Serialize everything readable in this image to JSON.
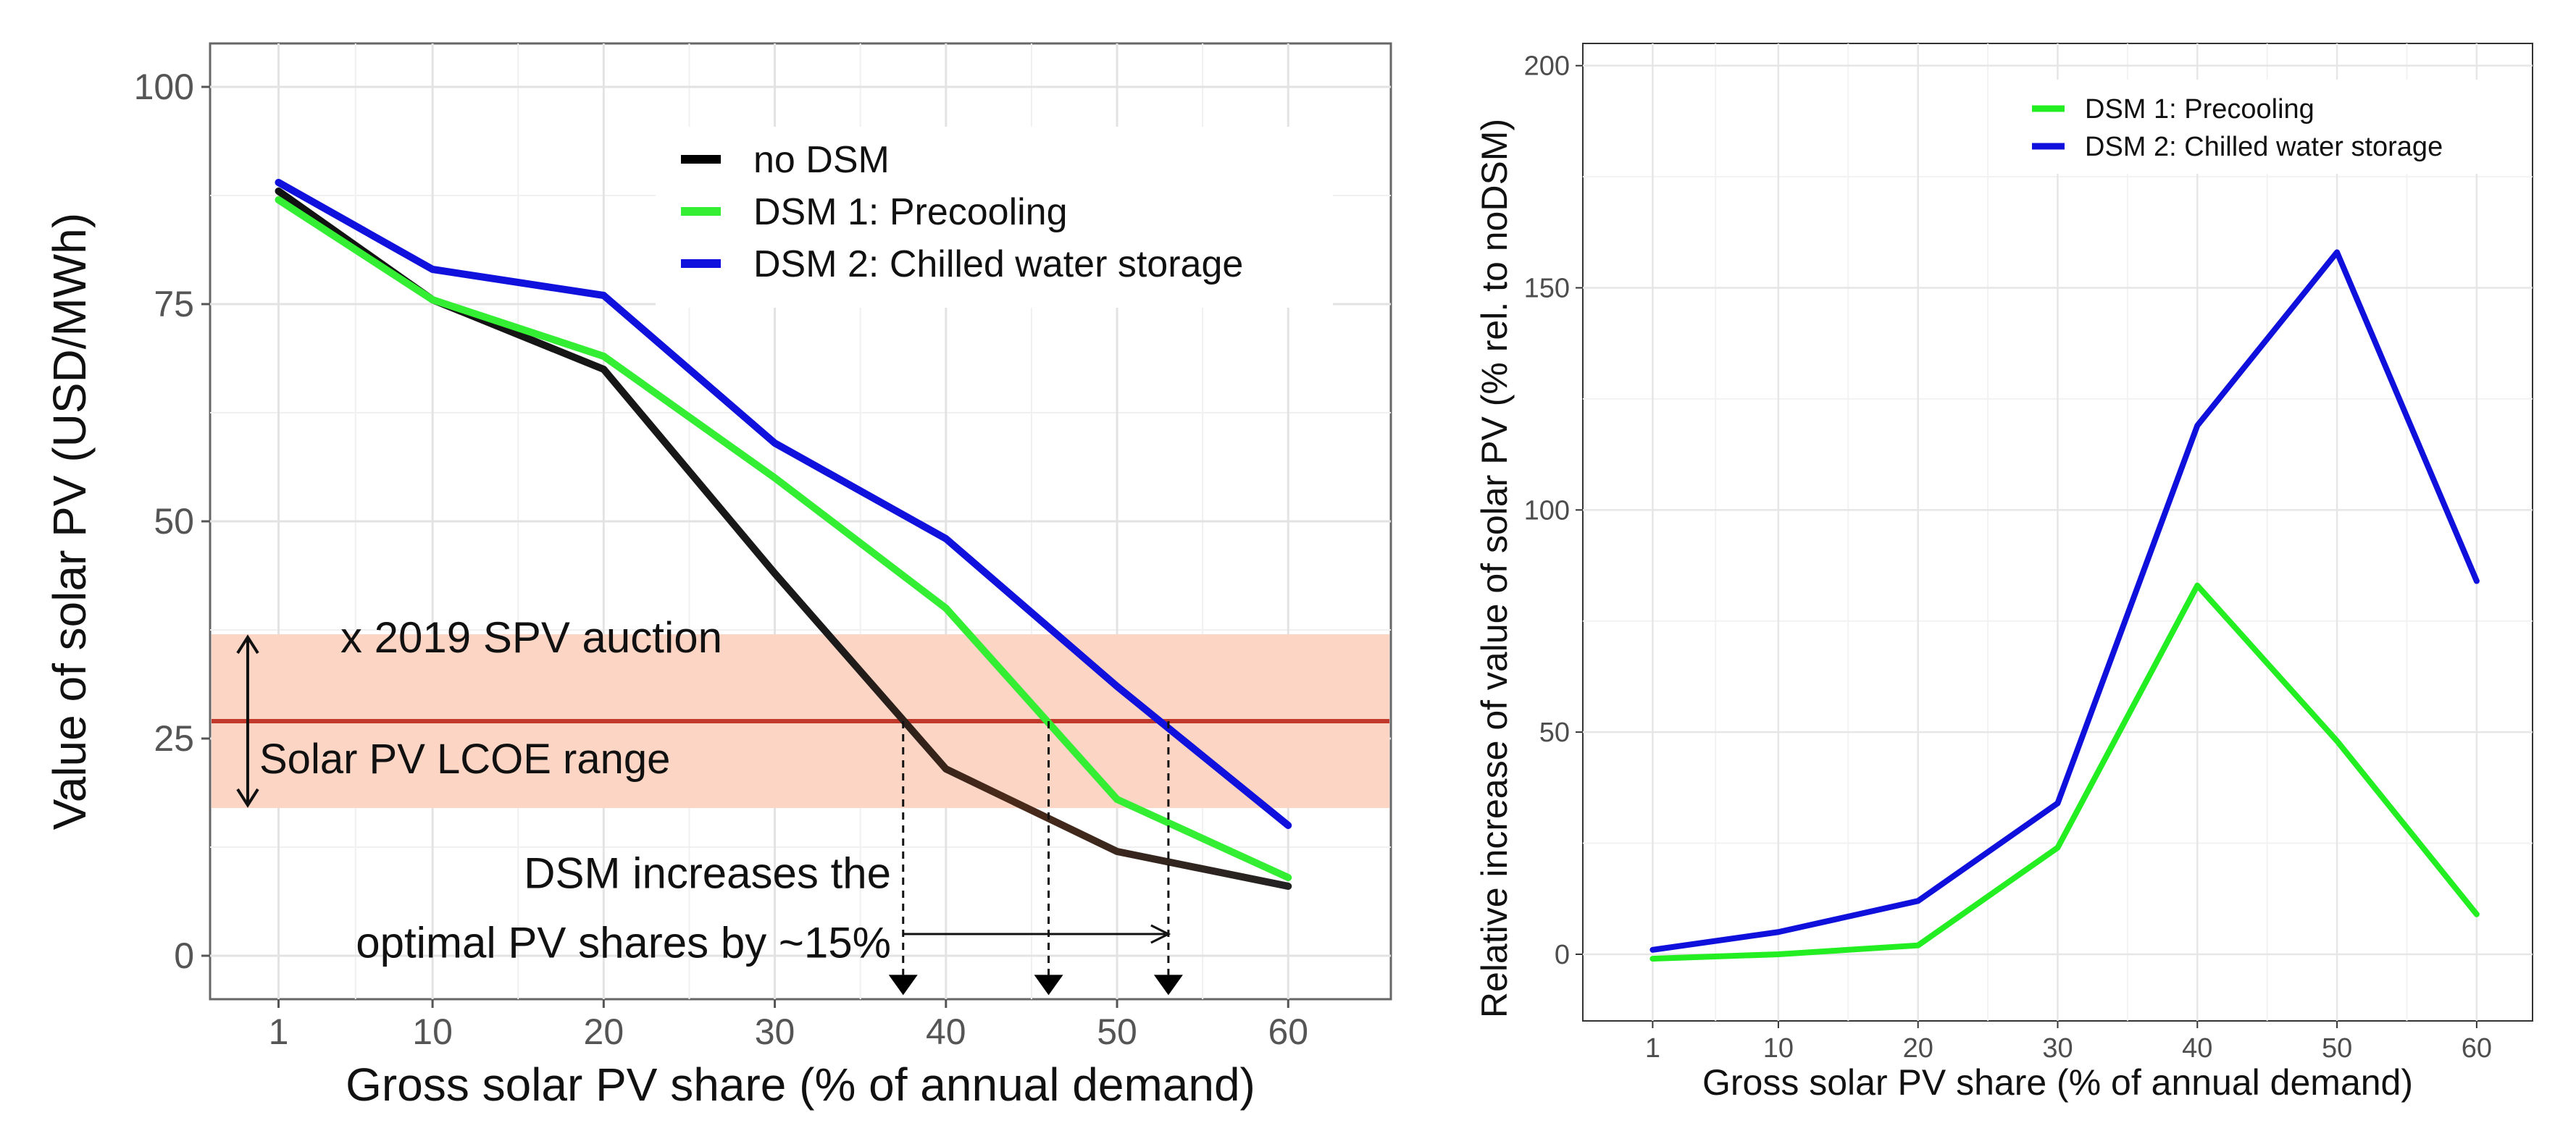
{
  "chart_data": [
    {
      "type": "line",
      "title": "",
      "xlabel": "Gross solar PV share (% of annual demand)",
      "ylabel": "Value of solar PV (USD/MWh)",
      "x": [
        1,
        10,
        20,
        30,
        40,
        50,
        60
      ],
      "x_tick_labels": [
        "1",
        "10",
        "20",
        "30",
        "40",
        "50",
        "60"
      ],
      "y_ticks": [
        0,
        25,
        50,
        75,
        100
      ],
      "xlim": [
        -3,
        66
      ],
      "ylim": [
        -5,
        105
      ],
      "grid": true,
      "legend_position": "top-right",
      "series": [
        {
          "name": "no DSM",
          "color": "#000000",
          "values": [
            88,
            75.5,
            67.5,
            44,
            21.5,
            12,
            8
          ]
        },
        {
          "name": "DSM 1: Precooling",
          "color": "#33ee33",
          "values": [
            87,
            75.5,
            69,
            55,
            40,
            18,
            9
          ]
        },
        {
          "name": "DSM 2: Chilled water storage",
          "color": "#1111dd",
          "values": [
            89,
            79,
            76,
            59,
            48,
            31,
            15
          ]
        }
      ],
      "lcoe_band": {
        "label": "Solar PV LCOE range",
        "low": 17,
        "high": 37,
        "color": "#fdd5c5"
      },
      "auction_line": {
        "label": "x 2019 SPV auction",
        "value": 27,
        "color": "#c0392b"
      },
      "crossings_x": [
        37.5,
        46,
        53
      ],
      "annotation": {
        "line1": "DSM increases the",
        "line2": "optimal PV shares by ~15%"
      }
    },
    {
      "type": "line",
      "title": "",
      "xlabel": "Gross solar PV share (% of annual demand)",
      "ylabel": "Relative increase of value of solar PV (% rel. to noDSM)",
      "x": [
        1,
        10,
        20,
        30,
        40,
        50,
        60
      ],
      "x_tick_labels": [
        "1",
        "10",
        "20",
        "30",
        "40",
        "50",
        "60"
      ],
      "y_ticks": [
        0,
        50,
        100,
        150,
        200
      ],
      "xlim": [
        -4,
        64
      ],
      "ylim": [
        -15,
        205
      ],
      "grid": true,
      "legend_position": "top-right",
      "series": [
        {
          "name": "DSM 1: Precooling",
          "color": "#22ee22",
          "values": [
            -1,
            0,
            2,
            24,
            83,
            48,
            9
          ]
        },
        {
          "name": "DSM 2: Chilled water storage",
          "color": "#1010dd",
          "values": [
            1,
            5,
            12,
            34,
            119,
            158,
            84
          ]
        }
      ]
    }
  ]
}
